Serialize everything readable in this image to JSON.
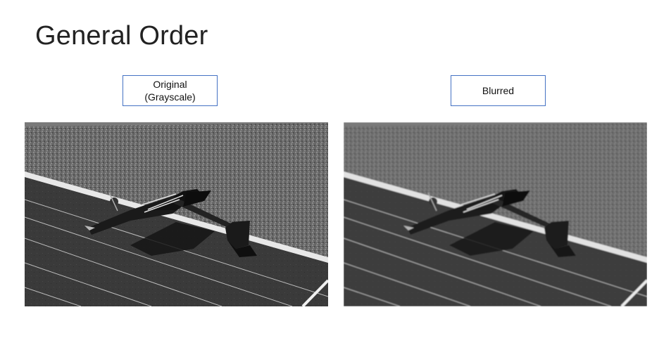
{
  "slide": {
    "title": "General Order"
  },
  "panels": {
    "original": {
      "label_line1": "Original",
      "label_line2": "(Grayscale)"
    },
    "blurred": {
      "label": "Blurred"
    }
  },
  "colors": {
    "box_border": "#4472c4",
    "title_text": "#222222"
  }
}
